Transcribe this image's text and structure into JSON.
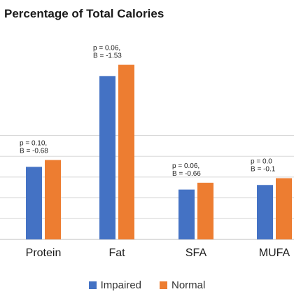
{
  "chart_data": {
    "type": "bar",
    "title": "Percentage of Total Calories",
    "xlabel": "",
    "ylabel": "",
    "categories": [
      "Protein",
      "Fat",
      "SFA",
      "MUFA"
    ],
    "series": [
      {
        "name": "Impaired",
        "color": "#4472c4",
        "values": [
          16,
          36,
          11,
          12
        ]
      },
      {
        "name": "Normal",
        "color": "#ed7d31",
        "values": [
          17.5,
          38.5,
          12.5,
          13.5
        ]
      }
    ],
    "annotations": [
      {
        "category": "Protein",
        "p_label": "p = 0.10,",
        "b_label": "B = -0.68"
      },
      {
        "category": "Fat",
        "p_label": "p = 0.06,",
        "b_label": "B = -1.53"
      },
      {
        "category": "SFA",
        "p_label": "p = 0.06,",
        "b_label": "B = -0.66"
      },
      {
        "category": "MUFA",
        "p_label": "p = 0.0",
        "b_label": "B = -0.1"
      }
    ],
    "ylim": [
      0,
      46
    ],
    "grid": true,
    "legend_position": "bottom"
  }
}
